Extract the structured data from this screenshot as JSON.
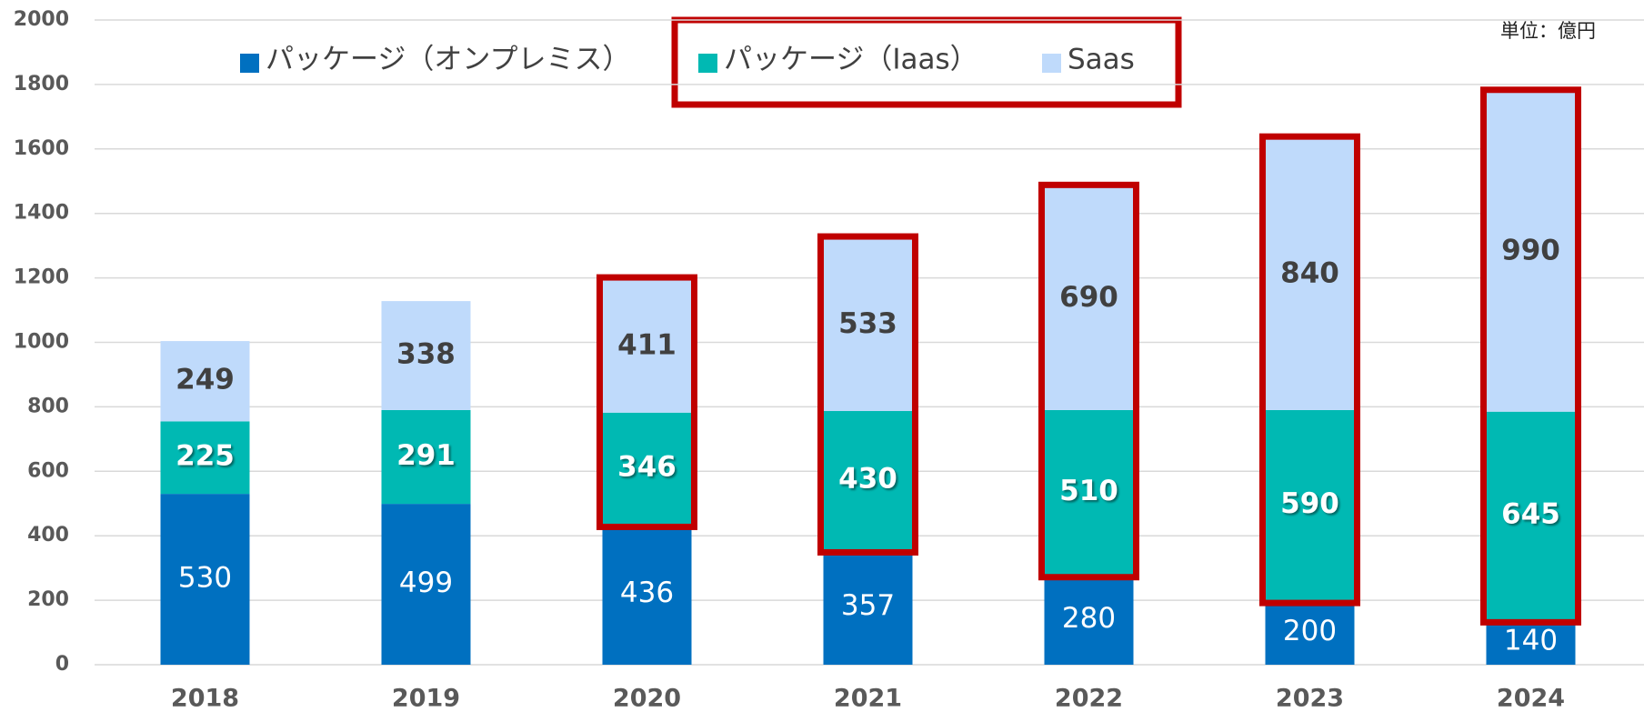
{
  "chart_data": {
    "type": "stacked_bar",
    "unit_label": "単位：億円",
    "categories": [
      "2018",
      "2019",
      "2020",
      "2021",
      "2022",
      "2023",
      "2024"
    ],
    "series": [
      {
        "name": "パッケージ（オンプレミス）",
        "color": "#0070c0",
        "values": [
          530,
          499,
          436,
          357,
          280,
          200,
          140
        ]
      },
      {
        "name": "パッケージ（Iaas）",
        "color": "#00b9b3",
        "values": [
          225,
          291,
          346,
          430,
          510,
          590,
          645
        ]
      },
      {
        "name": "Saas",
        "color": "#bfdafb",
        "values": [
          249,
          338,
          411,
          533,
          690,
          840,
          990
        ]
      }
    ],
    "ylim": [
      0,
      2000
    ],
    "yticks": [
      0,
      200,
      400,
      600,
      800,
      1000,
      1200,
      1400,
      1600,
      1800,
      2000
    ],
    "grid": true,
    "legend": "top"
  }
}
